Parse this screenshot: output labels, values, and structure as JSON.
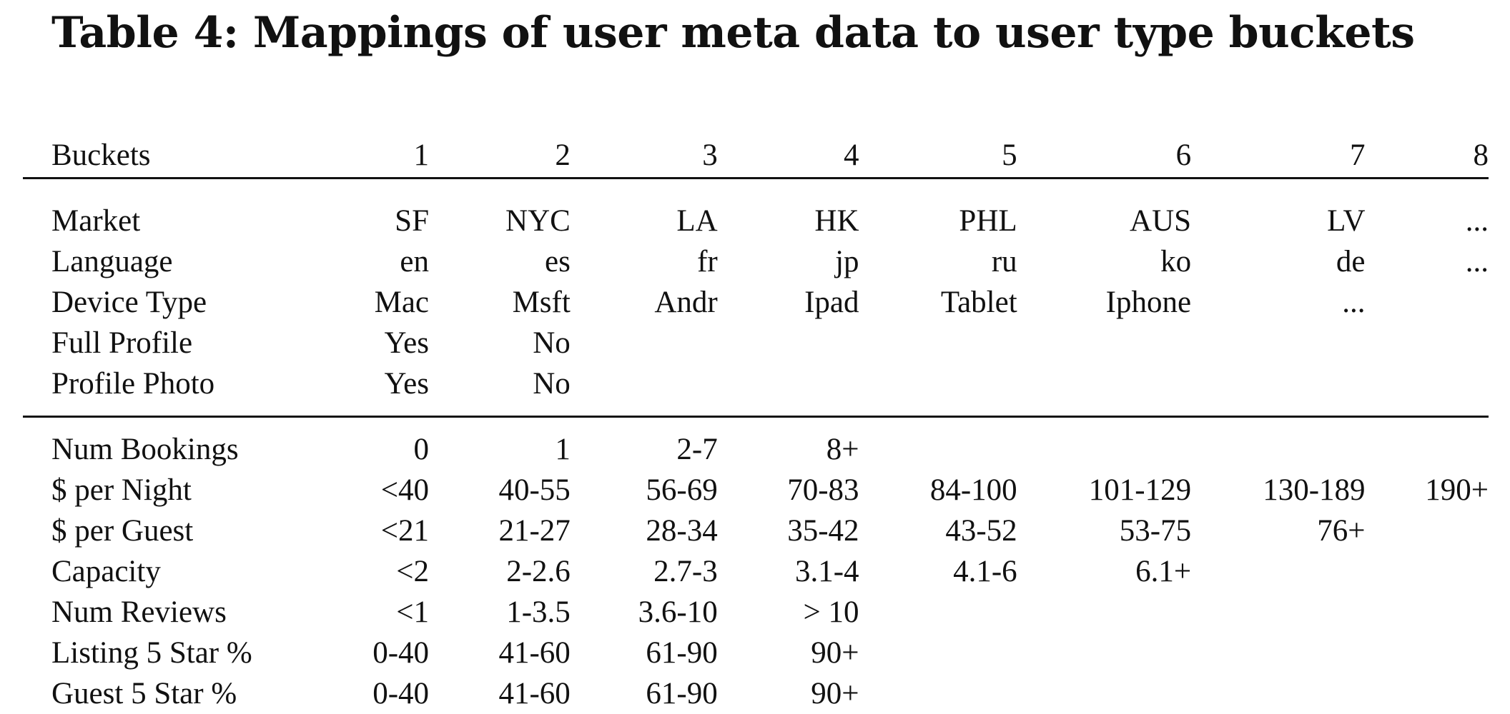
{
  "caption": "Table 4: Mappings of user meta data to user type buckets",
  "table": {
    "header_label": "Buckets",
    "columns": [
      "1",
      "2",
      "3",
      "4",
      "5",
      "6",
      "7",
      "8"
    ],
    "group1": [
      {
        "label": "Market",
        "cells": [
          "SF",
          "NYC",
          "LA",
          "HK",
          "PHL",
          "AUS",
          "LV",
          "..."
        ]
      },
      {
        "label": "Language",
        "cells": [
          "en",
          "es",
          "fr",
          "jp",
          "ru",
          "ko",
          "de",
          "..."
        ]
      },
      {
        "label": "Device Type",
        "cells": [
          "Mac",
          "Msft",
          "Andr",
          "Ipad",
          "Tablet",
          "Iphone",
          "...",
          ""
        ]
      },
      {
        "label": "Full Profile",
        "cells": [
          "Yes",
          "No",
          "",
          "",
          "",
          "",
          "",
          ""
        ]
      },
      {
        "label": "Profile Photo",
        "cells": [
          "Yes",
          "No",
          "",
          "",
          "",
          "",
          "",
          ""
        ]
      }
    ],
    "group2": [
      {
        "label": "Num Bookings",
        "cells": [
          "0",
          "1",
          "2-7",
          "8+",
          "",
          "",
          "",
          ""
        ]
      },
      {
        "label": "$ per Night",
        "cells": [
          "<40",
          "40-55",
          "56-69",
          "70-83",
          "84-100",
          "101-129",
          "130-189",
          "190+"
        ]
      },
      {
        "label": "$ per Guest",
        "cells": [
          "<21",
          "21-27",
          "28-34",
          "35-42",
          "43-52",
          "53-75",
          "76+",
          ""
        ]
      },
      {
        "label": "Capacity",
        "cells": [
          "<2",
          "2-2.6",
          "2.7-3",
          "3.1-4",
          "4.1-6",
          "6.1+",
          "",
          ""
        ]
      },
      {
        "label": "Num Reviews",
        "cells": [
          "<1",
          "1-3.5",
          "3.6-10",
          "> 10",
          "",
          "",
          "",
          ""
        ]
      },
      {
        "label": "Listing 5 Star %",
        "cells": [
          "0-40",
          "41-60",
          "61-90",
          "90+",
          "",
          "",
          "",
          ""
        ]
      },
      {
        "label": "Guest 5 Star %",
        "cells": [
          "0-40",
          "41-60",
          "61-90",
          "90+",
          "",
          "",
          "",
          ""
        ]
      }
    ]
  }
}
